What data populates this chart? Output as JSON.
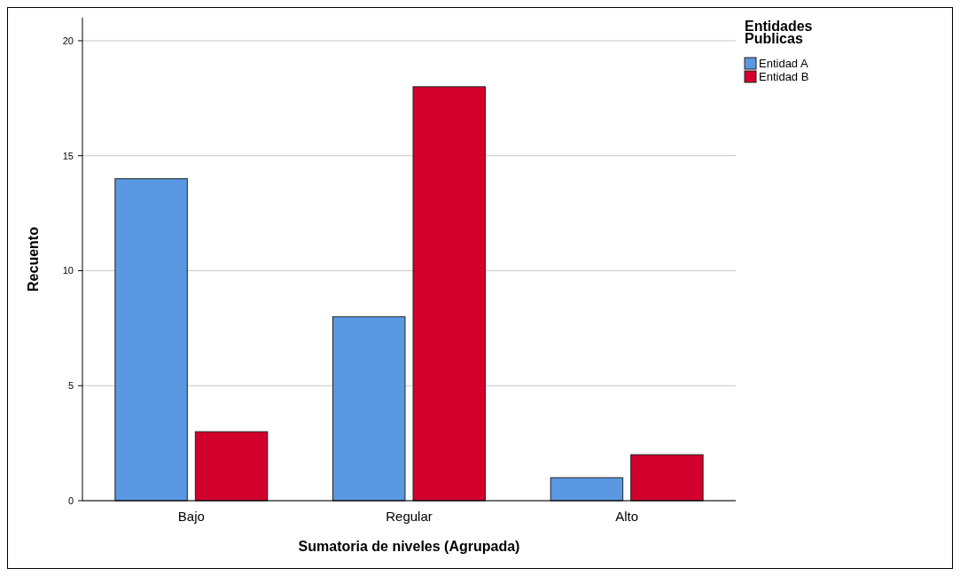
{
  "chart_data": {
    "type": "bar",
    "xlabel": "Sumatoria de niveles (Agrupada)",
    "ylabel": "Recuento",
    "legend_title": "Entidades Publicas",
    "categories": [
      "Bajo",
      "Regular",
      "Alto"
    ],
    "series": [
      {
        "name": "Entidad A",
        "color": "#5a98e2",
        "values": [
          14,
          8,
          1
        ]
      },
      {
        "name": "Entidad B",
        "color": "#d2002c",
        "values": [
          3,
          18,
          2
        ]
      }
    ],
    "ylim": [
      0,
      21
    ],
    "yticks": [
      0,
      5,
      10,
      15,
      20
    ],
    "grid": "y",
    "legend": "top right"
  }
}
